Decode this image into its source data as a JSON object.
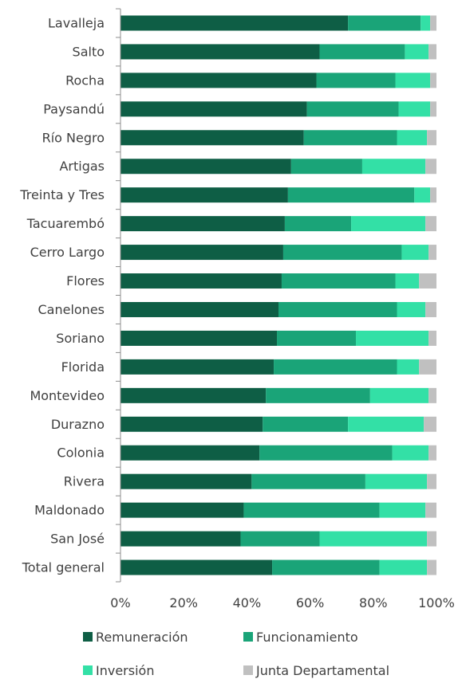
{
  "chart_data": {
    "type": "bar",
    "orientation": "horizontal",
    "stacked": "percent",
    "categories": [
      "Lavalleja",
      "Salto",
      "Rocha",
      "Paysandú",
      "Río Negro",
      "Artigas",
      "Treinta y Tres",
      "Tacuarembó",
      "Cerro Largo",
      "Flores",
      "Canelones",
      "Soriano",
      "Florida",
      "Montevideo",
      "Durazno",
      "Colonia",
      "Rivera",
      "Maldonado",
      "San José",
      "Total general"
    ],
    "series": [
      {
        "name": "Remuneración",
        "color": "#0e5e45",
        "values": [
          72,
          63,
          62,
          59,
          58,
          54,
          53,
          52,
          51.5,
          51,
          50,
          49.5,
          48.5,
          46,
          45,
          44,
          41.5,
          39,
          38,
          48
        ]
      },
      {
        "name": "Funcionamiento",
        "color": "#1aa478",
        "values": [
          23,
          27,
          25,
          29,
          29.5,
          22.5,
          40,
          21,
          37.5,
          36,
          37.5,
          25,
          39,
          33,
          27,
          42,
          36,
          43,
          25,
          34
        ]
      },
      {
        "name": "Inversión",
        "color": "#33e0a6",
        "values": [
          3,
          7.5,
          11,
          10,
          9.5,
          20,
          5,
          23.5,
          8.5,
          7.5,
          9,
          23,
          7,
          18.5,
          24,
          11.5,
          19.5,
          14.5,
          34,
          15
        ]
      },
      {
        "name": "Junta Departamental",
        "color": "#c0c0c0",
        "values": [
          2,
          2.5,
          2,
          2,
          3,
          3.5,
          2,
          3.5,
          2.5,
          5.5,
          3.5,
          2.5,
          5.5,
          2.5,
          4,
          2.5,
          3,
          3.5,
          3,
          3
        ]
      }
    ],
    "xlim": [
      0,
      100
    ],
    "xticks": [
      "0%",
      "20%",
      "40%",
      "60%",
      "80%",
      "100%"
    ],
    "legend_position": "bottom",
    "grid": false,
    "title": "",
    "xlabel": "",
    "ylabel": ""
  }
}
